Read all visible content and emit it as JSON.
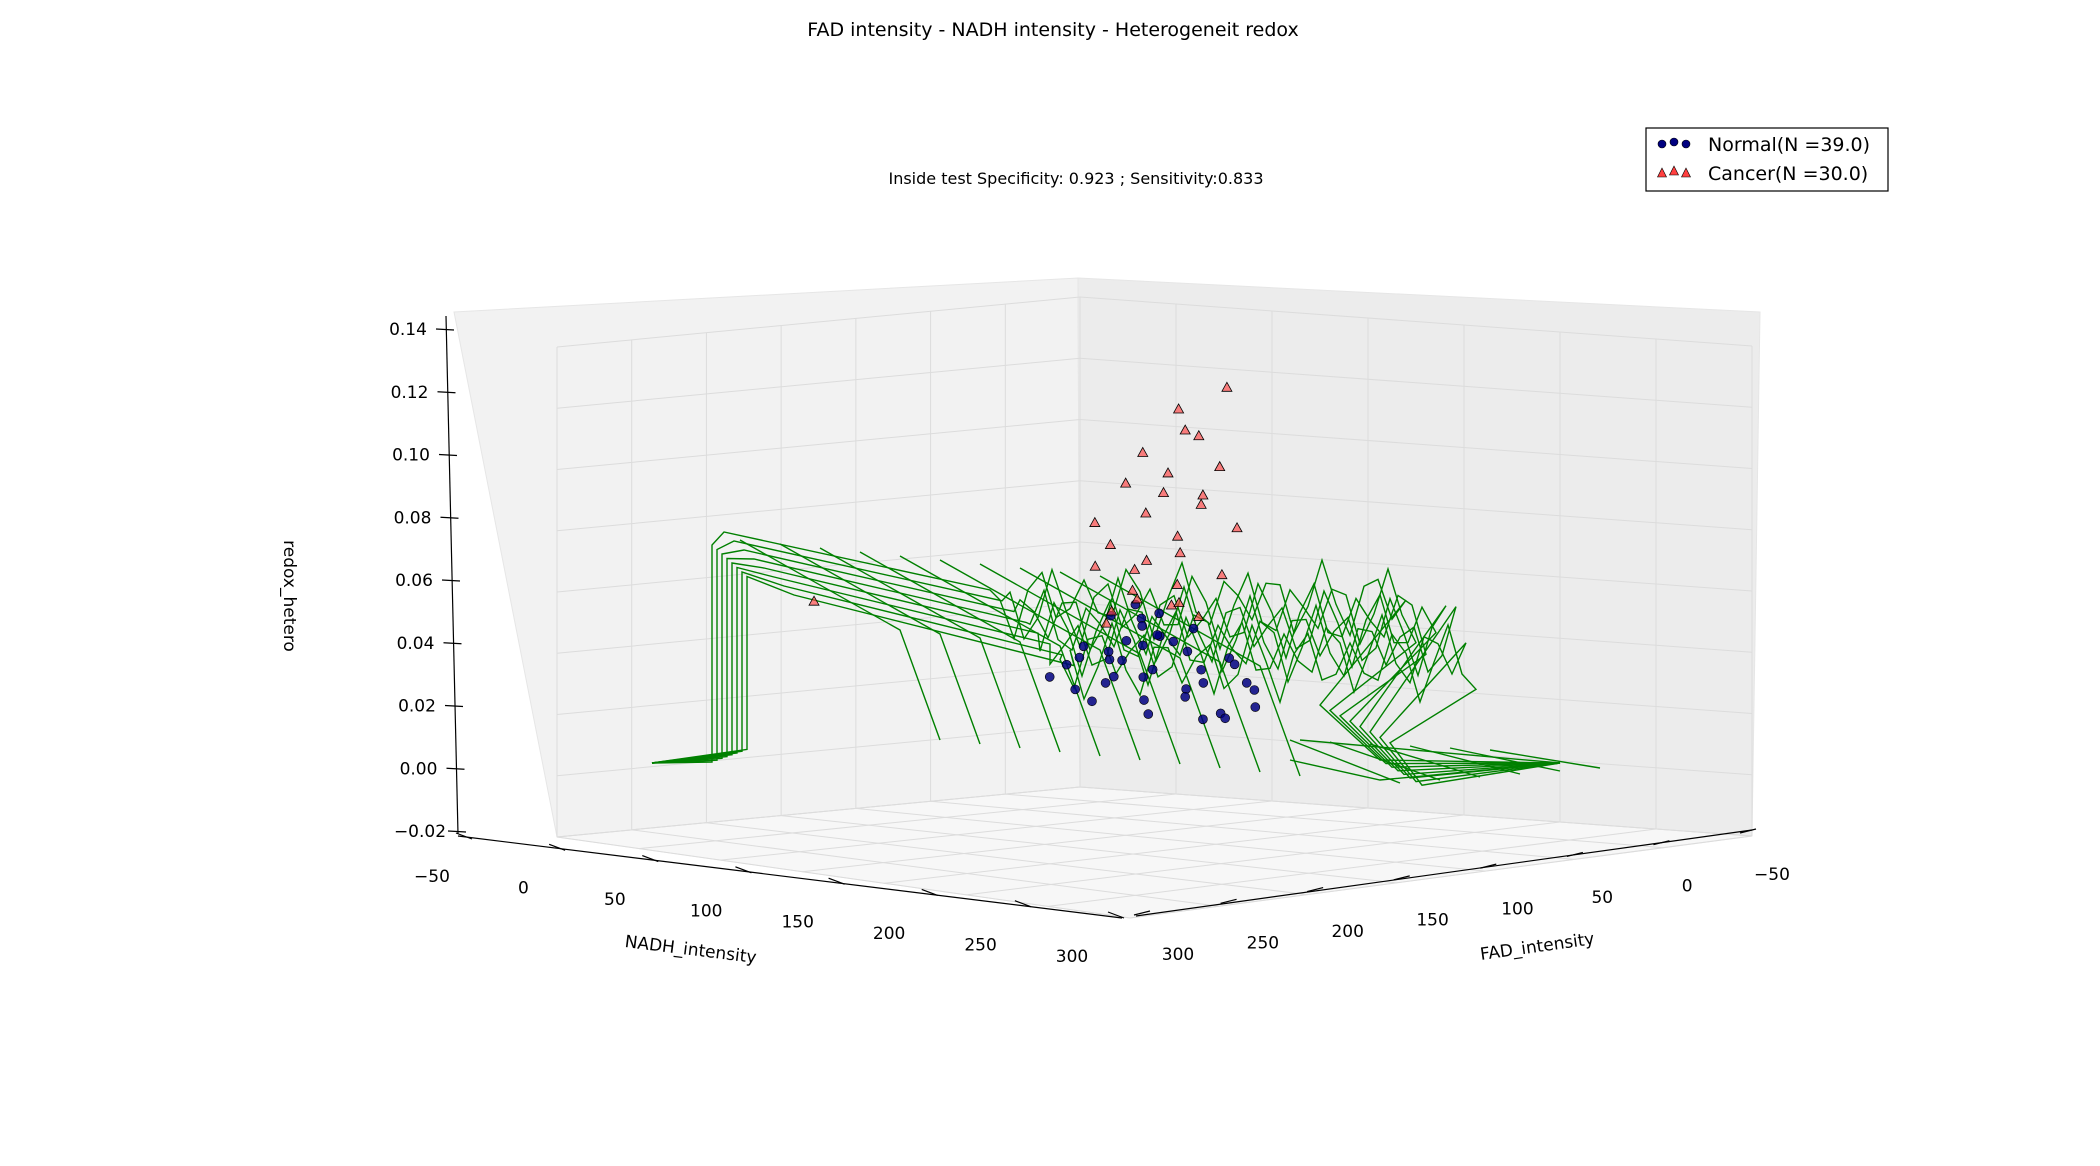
{
  "chart_data": {
    "type": "scatter",
    "subtype": "3d-scatter-with-wireframe-surface",
    "title": "FAD intensity - NADH intensity - Heterogeneit redox",
    "subtitle": "Inside test Specificity: 0.923 ; Sensitivity:0.833",
    "xlabel": "FAD_intensity",
    "ylabel": "NADH_intensity",
    "zlabel": "redox_hetero",
    "xlim": [
      -50,
      300
    ],
    "ylim": [
      -50,
      300
    ],
    "zlim": [
      -0.02,
      0.14
    ],
    "x_ticks": [
      "300",
      "250",
      "200",
      "150",
      "100",
      "50",
      "0",
      "−50"
    ],
    "y_ticks": [
      "−50",
      "0",
      "50",
      "100",
      "150",
      "200",
      "250",
      "300"
    ],
    "z_ticks": [
      "0.14",
      "0.12",
      "0.10",
      "0.08",
      "0.06",
      "0.04",
      "0.02",
      "0.00",
      "−0.02"
    ],
    "grid": true,
    "legend_position": "top-right",
    "surface_color": "#008000",
    "series": [
      {
        "name": "Normal(N =39.0)",
        "marker": "circle",
        "color": "#000080",
        "points": [
          {
            "x": 90,
            "y": 110,
            "z": 0.045
          },
          {
            "x": 95,
            "y": 105,
            "z": 0.042
          },
          {
            "x": 100,
            "y": 115,
            "z": 0.035
          },
          {
            "x": 85,
            "y": 120,
            "z": 0.028
          },
          {
            "x": 80,
            "y": 125,
            "z": 0.03
          },
          {
            "x": 110,
            "y": 100,
            "z": 0.038
          },
          {
            "x": 105,
            "y": 95,
            "z": 0.04
          },
          {
            "x": 75,
            "y": 130,
            "z": 0.02
          },
          {
            "x": 70,
            "y": 128,
            "z": 0.018
          },
          {
            "x": 88,
            "y": 98,
            "z": 0.05
          },
          {
            "x": 92,
            "y": 102,
            "z": 0.048
          },
          {
            "x": 98,
            "y": 108,
            "z": 0.032
          },
          {
            "x": 102,
            "y": 112,
            "z": 0.025
          },
          {
            "x": 115,
            "y": 90,
            "z": 0.042
          },
          {
            "x": 120,
            "y": 85,
            "z": 0.036
          },
          {
            "x": 65,
            "y": 140,
            "z": 0.022
          },
          {
            "x": 60,
            "y": 135,
            "z": 0.027
          },
          {
            "x": 82,
            "y": 118,
            "z": 0.04
          },
          {
            "x": 78,
            "y": 122,
            "z": 0.034
          },
          {
            "x": 108,
            "y": 96,
            "z": 0.03
          },
          {
            "x": 112,
            "y": 92,
            "z": 0.024
          },
          {
            "x": 94,
            "y": 100,
            "z": 0.055
          },
          {
            "x": 86,
            "y": 106,
            "z": 0.052
          },
          {
            "x": 96,
            "y": 114,
            "z": 0.046
          },
          {
            "x": 104,
            "y": 104,
            "z": 0.044
          },
          {
            "x": 72,
            "y": 132,
            "z": 0.038
          },
          {
            "x": 118,
            "y": 88,
            "z": 0.028
          },
          {
            "x": 125,
            "y": 80,
            "z": 0.032
          },
          {
            "x": 68,
            "y": 138,
            "z": 0.03
          },
          {
            "x": 90,
            "y": 124,
            "z": 0.026
          },
          {
            "x": 84,
            "y": 112,
            "z": 0.043
          },
          {
            "x": 100,
            "y": 98,
            "z": 0.037
          },
          {
            "x": 106,
            "y": 118,
            "z": 0.021
          },
          {
            "x": 76,
            "y": 116,
            "z": 0.047
          },
          {
            "x": 114,
            "y": 106,
            "z": 0.033
          },
          {
            "x": 122,
            "y": 94,
            "z": 0.039
          },
          {
            "x": 62,
            "y": 126,
            "z": 0.035
          },
          {
            "x": 98,
            "y": 90,
            "z": 0.051
          },
          {
            "x": 88,
            "y": 132,
            "z": 0.019
          }
        ]
      },
      {
        "name": "Cancer(N =30.0)",
        "marker": "triangle",
        "color": "#ff4040",
        "points": [
          {
            "x": 60,
            "y": 120,
            "z": 0.125
          },
          {
            "x": 80,
            "y": 115,
            "z": 0.112
          },
          {
            "x": 75,
            "y": 118,
            "z": 0.11
          },
          {
            "x": 95,
            "y": 105,
            "z": 0.105
          },
          {
            "x": 70,
            "y": 125,
            "z": 0.1
          },
          {
            "x": 85,
            "y": 110,
            "z": 0.098
          },
          {
            "x": 100,
            "y": 100,
            "z": 0.095
          },
          {
            "x": 90,
            "y": 112,
            "z": 0.092
          },
          {
            "x": 78,
            "y": 122,
            "z": 0.088
          },
          {
            "x": 92,
            "y": 104,
            "z": 0.085
          },
          {
            "x": 65,
            "y": 130,
            "z": 0.08
          },
          {
            "x": 88,
            "y": 118,
            "z": 0.078
          },
          {
            "x": 105,
            "y": 96,
            "z": 0.075
          },
          {
            "x": 82,
            "y": 114,
            "z": 0.072
          },
          {
            "x": 96,
            "y": 108,
            "z": 0.07
          },
          {
            "x": 110,
            "y": 92,
            "z": 0.068
          },
          {
            "x": 72,
            "y": 128,
            "z": 0.065
          },
          {
            "x": 86,
            "y": 116,
            "z": 0.062
          },
          {
            "x": 98,
            "y": 102,
            "z": 0.06
          },
          {
            "x": 230,
            "y": 40,
            "z": 0.06
          },
          {
            "x": 104,
            "y": 110,
            "z": 0.058
          },
          {
            "x": 94,
            "y": 120,
            "z": 0.056
          },
          {
            "x": 76,
            "y": 108,
            "z": 0.055
          },
          {
            "x": 102,
            "y": 94,
            "z": 0.053
          },
          {
            "x": 84,
            "y": 126,
            "z": 0.052
          },
          {
            "x": 112,
            "y": 100,
            "z": 0.05
          },
          {
            "x": 68,
            "y": 114,
            "z": 0.09
          },
          {
            "x": 108,
            "y": 90,
            "z": 0.082
          },
          {
            "x": 74,
            "y": 106,
            "z": 0.118
          },
          {
            "x": 90,
            "y": 96,
            "z": 0.066
          }
        ]
      }
    ]
  }
}
